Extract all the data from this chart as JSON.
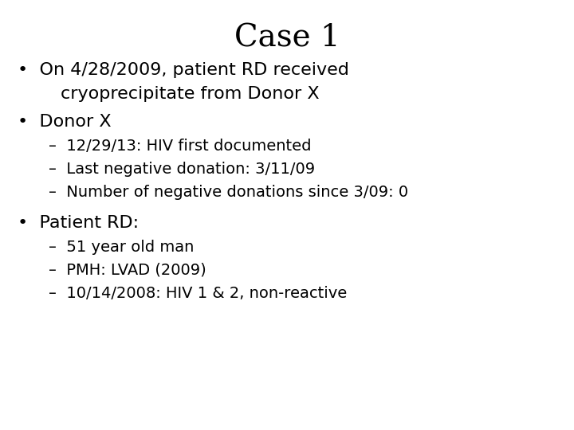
{
  "title": "Case 1",
  "title_fontsize": 28,
  "title_fontweight": "normal",
  "background_color": "#ffffff",
  "text_color": "#000000",
  "bullet1_line1": "On 4/28/2009, patient RD received",
  "bullet1_line2": "cryoprecipitate from Donor X",
  "bullet2": "Donor X",
  "sub1": "12/29/13: HIV first documented",
  "sub2": "Last negative donation: 3/11/09",
  "sub3": "Number of negative donations since 3/09: 0",
  "bullet3": "Patient RD:",
  "sub4": "51 year old man",
  "sub5": "PMH: LVAD (2009)",
  "sub6": "10/14/2008: HIV 1 & 2, non-reactive",
  "main_fontsize": 16,
  "sub_fontsize": 14,
  "bullet_char": "•",
  "dash_char": "–"
}
